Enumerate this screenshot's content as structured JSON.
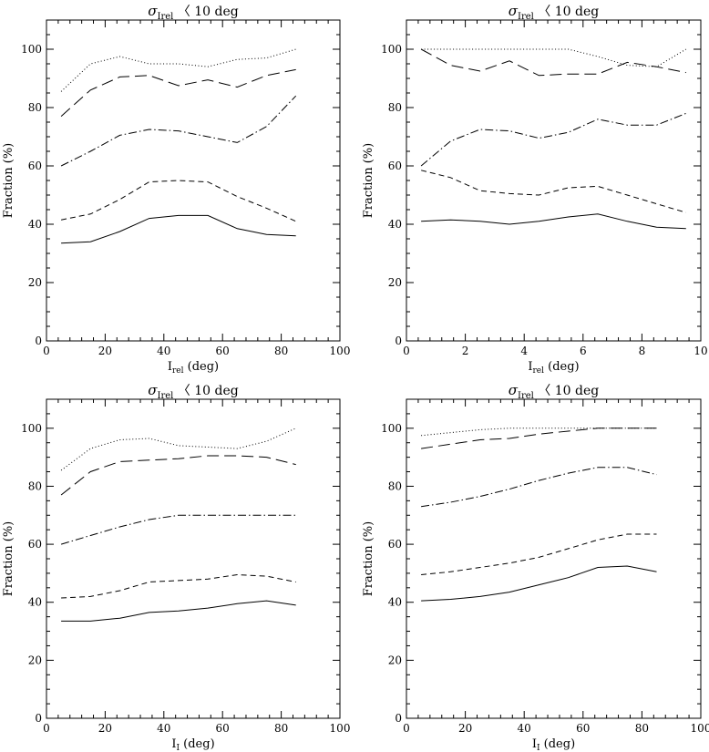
{
  "chart_data": [
    {
      "type": "line",
      "title": {
        "symbol": "σ",
        "sub": "Irel",
        "rest": " 〈 10 deg"
      },
      "xlabel": {
        "main": "I",
        "sub": "rel",
        "rest": " (deg)"
      },
      "ylabel": "Fraction (%)",
      "xlim": [
        0,
        100
      ],
      "ylim": [
        0,
        110
      ],
      "xticks": [
        0,
        20,
        40,
        60,
        80,
        100
      ],
      "yticks": [
        0,
        20,
        40,
        60,
        80,
        100
      ],
      "x": [
        5,
        15,
        25,
        35,
        45,
        55,
        65,
        75,
        85
      ],
      "series": [
        {
          "style": "dotted",
          "values": [
            85.5,
            95,
            97.5,
            95,
            95,
            94,
            96.5,
            97,
            100
          ]
        },
        {
          "style": "longdash",
          "values": [
            77,
            86,
            90.5,
            91,
            87.5,
            89.5,
            87,
            91,
            93
          ]
        },
        {
          "style": "dashdot",
          "values": [
            60,
            65,
            70.5,
            72.5,
            72,
            70,
            68,
            73.5,
            84
          ]
        },
        {
          "style": "dashed",
          "values": [
            41.5,
            43.5,
            48.5,
            54.5,
            55,
            54.5,
            49.5,
            45.5,
            41
          ]
        },
        {
          "style": "solid",
          "values": [
            33.5,
            34,
            37.5,
            42,
            43,
            43,
            38.5,
            36.5,
            36
          ]
        }
      ]
    },
    {
      "type": "line",
      "title": {
        "symbol": "σ",
        "sub": "Irel",
        "rest": " 〈 10 deg"
      },
      "xlabel": {
        "main": "I",
        "sub": "rel",
        "rest": " (deg)"
      },
      "ylabel": "Fraction (%)",
      "xlim": [
        0,
        10
      ],
      "ylim": [
        0,
        110
      ],
      "xticks": [
        0,
        2,
        4,
        6,
        8,
        10
      ],
      "yticks": [
        0,
        20,
        40,
        60,
        80,
        100
      ],
      "x": [
        0.5,
        1.5,
        2.5,
        3.5,
        4.5,
        5.5,
        6.5,
        7.5,
        8.5,
        9.5
      ],
      "series": [
        {
          "style": "dotted",
          "values": [
            100,
            100,
            100,
            100,
            100,
            100,
            97.5,
            94.5,
            94,
            100
          ]
        },
        {
          "style": "longdash",
          "values": [
            100,
            94.5,
            92.5,
            96,
            91,
            91.5,
            91.5,
            95.5,
            94,
            92
          ]
        },
        {
          "style": "dashdot",
          "values": [
            60,
            68.5,
            72.5,
            72,
            69.5,
            71.5,
            76,
            74,
            74,
            78
          ]
        },
        {
          "style": "dashed",
          "values": [
            58.5,
            56,
            51.5,
            50.5,
            50,
            52.5,
            53,
            50,
            47,
            44
          ]
        },
        {
          "style": "solid",
          "values": [
            41,
            41.5,
            41,
            40,
            41,
            42.5,
            43.5,
            41,
            39,
            38.5
          ]
        }
      ]
    },
    {
      "type": "line",
      "title": {
        "symbol": "σ",
        "sub": "Irel",
        "rest": " 〈 10 deg"
      },
      "xlabel": {
        "main": "I",
        "sub": "I",
        "rest": " (deg)"
      },
      "ylabel": "Fraction (%)",
      "xlim": [
        0,
        100
      ],
      "ylim": [
        0,
        110
      ],
      "xticks": [
        0,
        20,
        40,
        60,
        80,
        100
      ],
      "yticks": [
        0,
        20,
        40,
        60,
        80,
        100
      ],
      "x": [
        5,
        15,
        25,
        35,
        45,
        55,
        65,
        75,
        85
      ],
      "series": [
        {
          "style": "dotted",
          "values": [
            85.5,
            93,
            96,
            96.5,
            94,
            93.5,
            93,
            95.5,
            100
          ]
        },
        {
          "style": "longdash",
          "values": [
            77,
            85,
            88.5,
            89,
            89.5,
            90.5,
            90.5,
            90,
            87.5
          ]
        },
        {
          "style": "dashdot",
          "values": [
            60,
            63,
            66,
            68.5,
            70,
            70,
            70,
            70,
            70
          ]
        },
        {
          "style": "dashed",
          "values": [
            41.5,
            42,
            44,
            47,
            47.5,
            48,
            49.5,
            49,
            47
          ]
        },
        {
          "style": "solid",
          "values": [
            33.5,
            33.5,
            34.5,
            36.5,
            37,
            38,
            39.5,
            40.5,
            39
          ]
        }
      ]
    },
    {
      "type": "line",
      "title": {
        "symbol": "σ",
        "sub": "Irel",
        "rest": " 〈 10 deg"
      },
      "xlabel": {
        "main": "I",
        "sub": "I",
        "rest": " (deg)"
      },
      "ylabel": "Fraction (%)",
      "xlim": [
        0,
        100
      ],
      "ylim": [
        0,
        110
      ],
      "xticks": [
        0,
        20,
        40,
        60,
        80,
        100
      ],
      "yticks": [
        0,
        20,
        40,
        60,
        80,
        100
      ],
      "x": [
        5,
        15,
        25,
        35,
        45,
        55,
        65,
        75,
        85
      ],
      "series": [
        {
          "style": "dotted",
          "values": [
            97.5,
            98.5,
            99.5,
            100,
            100,
            100,
            100,
            100,
            100
          ]
        },
        {
          "style": "longdash",
          "values": [
            93,
            94.5,
            96,
            96.5,
            98,
            99,
            100,
            100,
            100
          ]
        },
        {
          "style": "dashdot",
          "values": [
            73,
            74.5,
            76.5,
            79,
            82,
            84.5,
            86.5,
            86.5,
            84
          ]
        },
        {
          "style": "dashed",
          "values": [
            49.5,
            50.5,
            52,
            53.5,
            55.5,
            58.5,
            61.5,
            63.5,
            63.5
          ]
        },
        {
          "style": "solid",
          "values": [
            40.5,
            41,
            42,
            43.5,
            46,
            48.5,
            52,
            52.5,
            50.5
          ]
        }
      ]
    }
  ]
}
